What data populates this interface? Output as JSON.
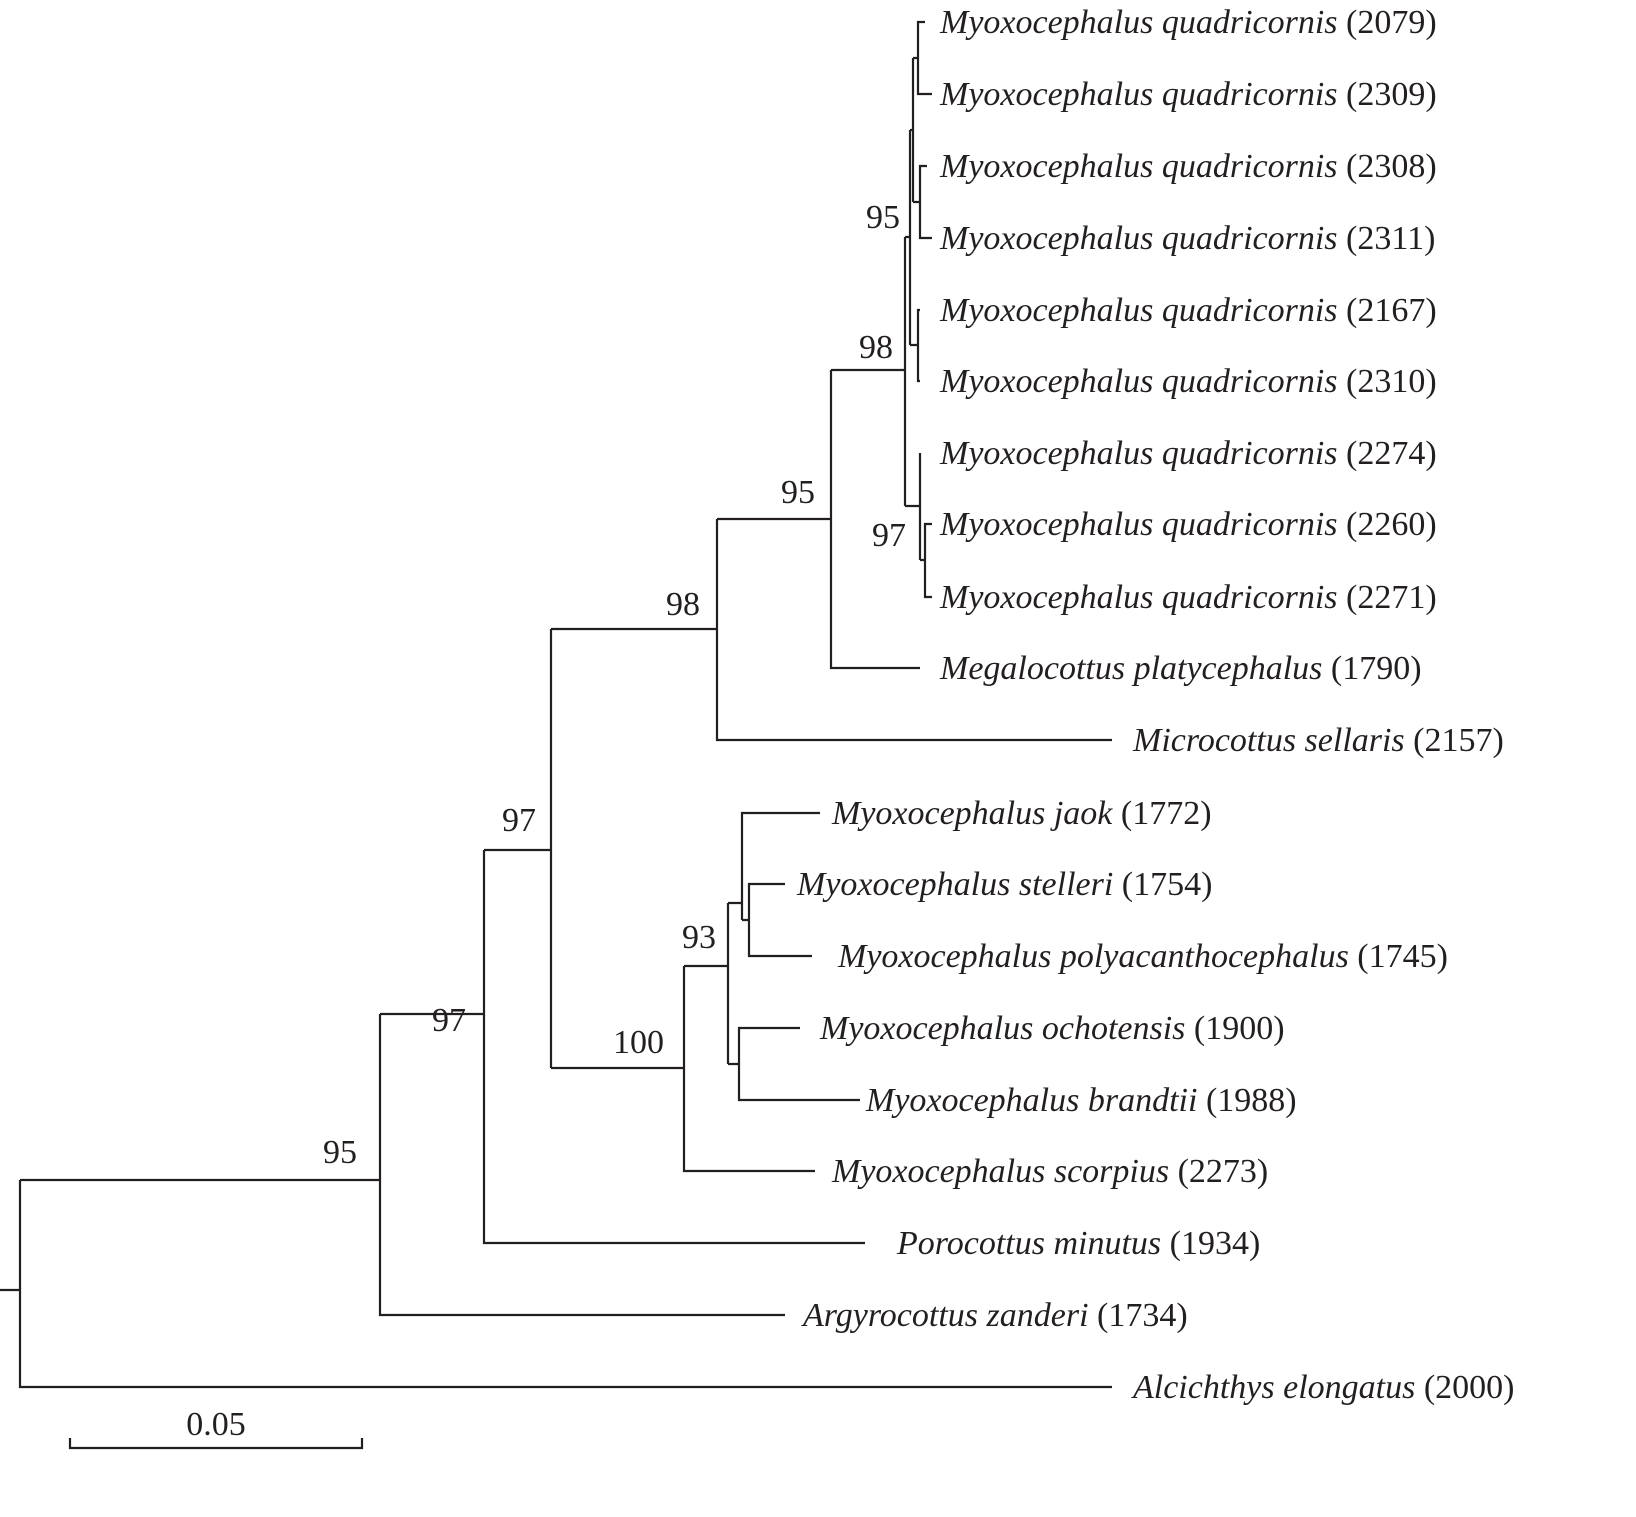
{
  "taxa": [
    {
      "species": "Myoxocephalus quadricornis",
      "id": "(2079)"
    },
    {
      "species": "Myoxocephalus quadricornis",
      "id": "(2309)"
    },
    {
      "species": "Myoxocephalus quadricornis",
      "id": "(2308)"
    },
    {
      "species": "Myoxocephalus quadricornis",
      "id": "(2311)"
    },
    {
      "species": "Myoxocephalus quadricornis",
      "id": "(2167)"
    },
    {
      "species": "Myoxocephalus quadricornis",
      "id": "(2310)"
    },
    {
      "species": "Myoxocephalus quadricornis",
      "id": "(2274)"
    },
    {
      "species": "Myoxocephalus quadricornis",
      "id": "(2260)"
    },
    {
      "species": "Myoxocephalus quadricornis",
      "id": "(2271)"
    },
    {
      "species": "Megalocottus platycephalus",
      "id": "(1790)"
    },
    {
      "species": "Microcottus sellaris",
      "id": "(2157)"
    },
    {
      "species": "Myoxocephalus jaok",
      "id": "(1772)"
    },
    {
      "species": "Myoxocephalus stelleri",
      "id": "(1754)"
    },
    {
      "species": "Myoxocephalus polyacanthocephalus",
      "id": "(1745)"
    },
    {
      "species": "Myoxocephalus ochotensis",
      "id": "(1900)"
    },
    {
      "species": "Myoxocephalus brandtii",
      "id": "(1988)"
    },
    {
      "species": "Myoxocephalus scorpius",
      "id": "(2273)"
    },
    {
      "species": "Porocottus minutus",
      "id": "(1934)"
    },
    {
      "species": "Argyrocottus zanderi",
      "id": "(1734)"
    },
    {
      "species": "Alcichthys elongatus",
      "id": "(2000)"
    }
  ],
  "bootstrap": {
    "quadricornis_inner": "95",
    "quadricornis_all": "98",
    "quadricornis_2274_clade": "97",
    "with_megalocottus": "95",
    "with_microcottus": "98",
    "myox_93": "93",
    "myox_100": "100",
    "upper_97": "97",
    "porocottus_97": "97",
    "argyrocottus_95": "95"
  },
  "scale_bar": {
    "label": "0.05",
    "value": 0.05
  }
}
